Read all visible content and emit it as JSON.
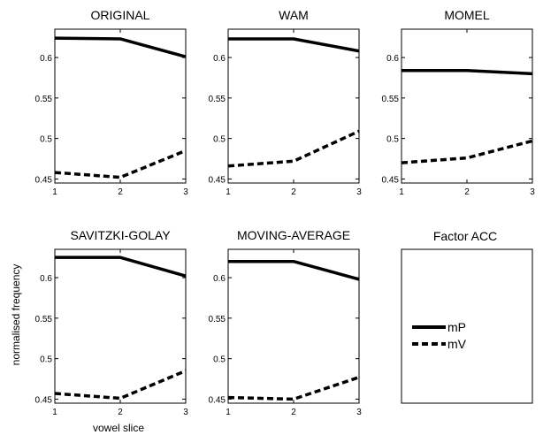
{
  "figure": {
    "ylabel": "normalised frequency",
    "xlabel": "vowel slice"
  },
  "chart_data": [
    {
      "type": "line",
      "title": "ORIGINAL",
      "x": [
        1,
        2,
        3
      ],
      "xticks": [
        "1",
        "2",
        "3"
      ],
      "ylim": [
        0.445,
        0.635
      ],
      "yticks": [
        "0.45",
        "0.5",
        "0.55",
        "0.6"
      ],
      "series": [
        {
          "name": "mP",
          "values": [
            0.624,
            0.623,
            0.601
          ],
          "style": "solid"
        },
        {
          "name": "mV",
          "values": [
            0.458,
            0.452,
            0.485
          ],
          "style": "dashed"
        }
      ]
    },
    {
      "type": "line",
      "title": "WAM",
      "x": [
        1,
        2,
        3
      ],
      "xticks": [
        "1",
        "2",
        "3"
      ],
      "ylim": [
        0.445,
        0.635
      ],
      "yticks": [
        "0.45",
        "0.5",
        "0.55",
        "0.6"
      ],
      "series": [
        {
          "name": "mP",
          "values": [
            0.623,
            0.623,
            0.608
          ],
          "style": "solid"
        },
        {
          "name": "mV",
          "values": [
            0.466,
            0.472,
            0.509
          ],
          "style": "dashed"
        }
      ]
    },
    {
      "type": "line",
      "title": "MOMEL",
      "x": [
        1,
        2,
        3
      ],
      "xticks": [
        "1",
        "2",
        "3"
      ],
      "ylim": [
        0.445,
        0.635
      ],
      "yticks": [
        "0.45",
        "0.5",
        "0.55",
        "0.6"
      ],
      "series": [
        {
          "name": "mP",
          "values": [
            0.584,
            0.584,
            0.58
          ],
          "style": "solid"
        },
        {
          "name": "mV",
          "values": [
            0.47,
            0.476,
            0.497
          ],
          "style": "dashed"
        }
      ]
    },
    {
      "type": "line",
      "title": "SAVITZKI-GOLAY",
      "x": [
        1,
        2,
        3
      ],
      "xticks": [
        "1",
        "2",
        "3"
      ],
      "ylim": [
        0.445,
        0.635
      ],
      "yticks": [
        "0.45",
        "0.5",
        "0.55",
        "0.6"
      ],
      "series": [
        {
          "name": "mP",
          "values": [
            0.625,
            0.625,
            0.602
          ],
          "style": "solid"
        },
        {
          "name": "mV",
          "values": [
            0.457,
            0.451,
            0.485
          ],
          "style": "dashed"
        }
      ]
    },
    {
      "type": "line",
      "title": "MOVING-AVERAGE",
      "x": [
        1,
        2,
        3
      ],
      "xticks": [
        "1",
        "2",
        "3"
      ],
      "ylim": [
        0.445,
        0.635
      ],
      "yticks": [
        "0.45",
        "0.5",
        "0.55",
        "0.6"
      ],
      "series": [
        {
          "name": "mP",
          "values": [
            0.62,
            0.62,
            0.598
          ],
          "style": "solid"
        },
        {
          "name": "mV",
          "values": [
            0.452,
            0.45,
            0.477
          ],
          "style": "dashed"
        }
      ]
    }
  ],
  "legend_panel": {
    "title": "Factor ACC",
    "entries": [
      {
        "label": "mP",
        "style": "solid"
      },
      {
        "label": "mV",
        "style": "dashed"
      }
    ]
  }
}
